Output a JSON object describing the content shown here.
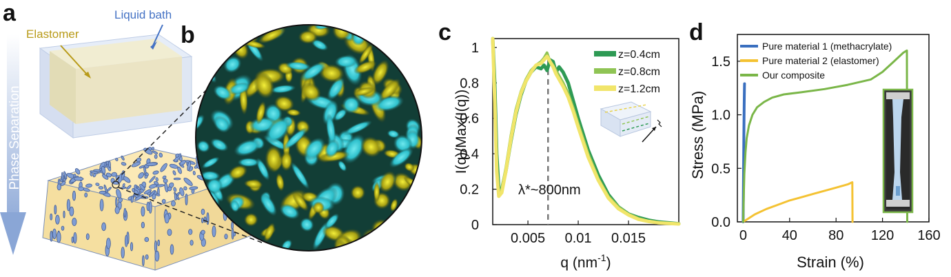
{
  "panels": {
    "a": {
      "letter": "a",
      "liquid_bath_label": "Liquid bath",
      "elastomer_label": "Elastomer",
      "arrow_label": "Phase Separation",
      "colors": {
        "liquid": "#4472c4",
        "elastomer": "#b89a18",
        "arrow": "#9fb6de"
      }
    },
    "b": {
      "letter": "b",
      "colors": {
        "cyan": "#34c7d3",
        "olive": "#9a9a12",
        "dark": "#0d3c34"
      }
    },
    "c": {
      "letter": "c",
      "annotation": "λ*~800nm",
      "inset_icon": "layered-block-icon"
    },
    "d": {
      "letter": "d",
      "inset_icon": "tensile-specimen-photo-icon"
    }
  },
  "chart_data": [
    {
      "id": "c",
      "type": "line",
      "xlabel": "q (nm",
      "xlabel_sup": "-1",
      "xlabel_end": ")",
      "ylabel": "I(q)/Max(I(q))",
      "xlim": [
        0.0015,
        0.02
      ],
      "ylim": [
        0,
        1.05
      ],
      "xticks": [
        0.005,
        0.01,
        0.015
      ],
      "xtick_labels": [
        "0.005",
        "0.01",
        "0.015"
      ],
      "yticks": [
        0,
        0.2,
        0.4,
        0.6,
        0.8,
        1
      ],
      "ytick_labels": [
        "0",
        "0.2",
        "0.4",
        "0.6",
        "0.8",
        "1"
      ],
      "grid": false,
      "legend": "top-right",
      "reference_line": {
        "x": 0.007,
        "label": "λ*~800nm"
      },
      "series": [
        {
          "name": "z=0.4cm",
          "color": "#2e9a54",
          "width": 5,
          "x": [
            0.0015,
            0.0017,
            0.0019,
            0.0021,
            0.0024,
            0.0028,
            0.0033,
            0.0038,
            0.0043,
            0.0048,
            0.0053,
            0.0058,
            0.0063,
            0.0066,
            0.0069,
            0.0072,
            0.0075,
            0.0078,
            0.0081,
            0.0085,
            0.009,
            0.0095,
            0.01,
            0.011,
            0.012,
            0.013,
            0.014,
            0.015,
            0.016,
            0.017,
            0.018,
            0.019,
            0.02
          ],
          "y": [
            1.05,
            0.8,
            0.4,
            0.2,
            0.2,
            0.3,
            0.47,
            0.62,
            0.73,
            0.81,
            0.86,
            0.89,
            0.88,
            0.9,
            0.87,
            0.93,
            0.92,
            0.86,
            0.89,
            0.86,
            0.8,
            0.7,
            0.6,
            0.42,
            0.28,
            0.17,
            0.1,
            0.06,
            0.04,
            0.025,
            0.015,
            0.01,
            0.005
          ]
        },
        {
          "name": "z=0.8cm",
          "color": "#8fc454",
          "width": 4,
          "x": [
            0.0015,
            0.0017,
            0.0019,
            0.0021,
            0.0024,
            0.0028,
            0.0033,
            0.0038,
            0.0043,
            0.0048,
            0.0053,
            0.0058,
            0.0063,
            0.0066,
            0.0069,
            0.0072,
            0.0075,
            0.0078,
            0.0081,
            0.0085,
            0.009,
            0.0095,
            0.01,
            0.011,
            0.012,
            0.013,
            0.014,
            0.015,
            0.016,
            0.017,
            0.018,
            0.019,
            0.02
          ],
          "y": [
            1.05,
            0.75,
            0.35,
            0.18,
            0.2,
            0.32,
            0.5,
            0.65,
            0.75,
            0.82,
            0.87,
            0.9,
            0.92,
            0.94,
            0.97,
            0.92,
            0.9,
            0.87,
            0.84,
            0.8,
            0.74,
            0.66,
            0.57,
            0.4,
            0.26,
            0.16,
            0.1,
            0.06,
            0.035,
            0.02,
            0.012,
            0.008,
            0.004
          ]
        },
        {
          "name": "z=1.2cm",
          "color": "#f1e56a",
          "width": 5,
          "x": [
            0.0015,
            0.0017,
            0.0019,
            0.0021,
            0.0024,
            0.0028,
            0.0033,
            0.0038,
            0.0043,
            0.0048,
            0.0053,
            0.0058,
            0.0063,
            0.0066,
            0.0069,
            0.0072,
            0.0075,
            0.0078,
            0.0081,
            0.0085,
            0.009,
            0.0095,
            0.01,
            0.011,
            0.012,
            0.013,
            0.014,
            0.015,
            0.016,
            0.017,
            0.018,
            0.019,
            0.02
          ],
          "y": [
            1.05,
            0.7,
            0.3,
            0.16,
            0.18,
            0.3,
            0.48,
            0.63,
            0.74,
            0.81,
            0.86,
            0.9,
            0.91,
            0.93,
            0.95,
            0.92,
            0.89,
            0.85,
            0.82,
            0.78,
            0.72,
            0.64,
            0.55,
            0.38,
            0.25,
            0.15,
            0.09,
            0.055,
            0.03,
            0.018,
            0.01,
            0.007,
            0.004
          ]
        }
      ]
    },
    {
      "id": "d",
      "type": "line",
      "xlabel": "Strain (%)",
      "ylabel": "Stress (MPa)",
      "xlim": [
        -5,
        160
      ],
      "ylim": [
        0,
        1.75
      ],
      "xticks": [
        0,
        40,
        80,
        120,
        160
      ],
      "xtick_labels": [
        "0",
        "40",
        "80",
        "120",
        "160"
      ],
      "yticks": [
        0,
        0.5,
        1,
        1.5
      ],
      "ytick_labels": [
        "0.0",
        "0.5",
        "1.0",
        "1.5"
      ],
      "grid": false,
      "legend": "top-left",
      "series": [
        {
          "name": "Pure material 1 (methacrylate)",
          "color": "#3a6fbf",
          "width": 4,
          "x": [
            0,
            0.3,
            0.6,
            0.9,
            1.1,
            1.2
          ],
          "y": [
            0,
            0.4,
            0.8,
            1.1,
            1.27,
            1.29
          ]
        },
        {
          "name": "Pure material 2 (elastomer)",
          "color": "#f4c232",
          "width": 3,
          "x": [
            0,
            10,
            20,
            30,
            40,
            50,
            60,
            70,
            80,
            90,
            94,
            94.2
          ],
          "y": [
            0,
            0.07,
            0.12,
            0.16,
            0.2,
            0.23,
            0.26,
            0.29,
            0.32,
            0.35,
            0.37,
            0.0
          ]
        },
        {
          "name": "Our composite",
          "color": "#7ab648",
          "width": 3,
          "x": [
            0,
            0.5,
            1,
            2,
            3,
            5,
            8,
            12,
            18,
            25,
            35,
            50,
            70,
            90,
            110,
            120,
            130,
            138,
            141,
            141.3
          ],
          "y": [
            0,
            0.25,
            0.45,
            0.65,
            0.78,
            0.9,
            1.0,
            1.07,
            1.12,
            1.16,
            1.19,
            1.21,
            1.24,
            1.28,
            1.33,
            1.4,
            1.5,
            1.58,
            1.6,
            0.0
          ]
        }
      ]
    }
  ]
}
